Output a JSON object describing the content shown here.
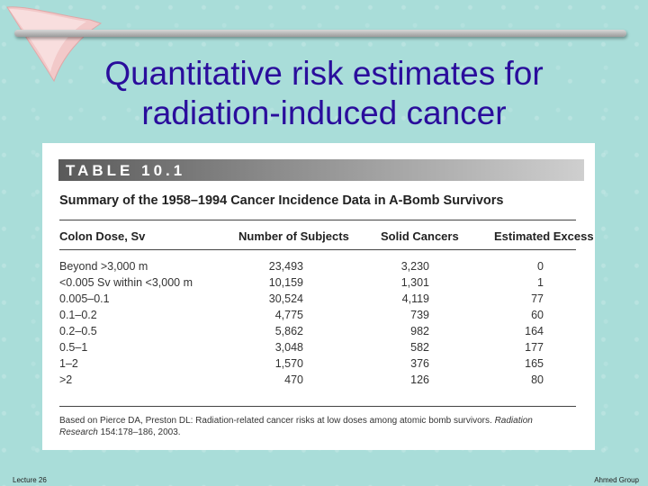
{
  "slide": {
    "title_line1": "Quantitative risk estimates for",
    "title_line2": "radiation-induced cancer",
    "footer_left": "Lecture 26",
    "footer_right": "Ahmed Group"
  },
  "table": {
    "label": "TABLE 10.1",
    "caption": "Summary of the 1958–1994 Cancer Incidence Data in A-Bomb Survivors",
    "columns": [
      "Colon Dose, Sv",
      "Number of Subjects",
      "Solid Cancers",
      "Estimated Excess"
    ],
    "rows": [
      [
        "Beyond >3,000 m",
        "23,493",
        "3,230",
        "0"
      ],
      [
        "<0.005 Sv within <3,000 m",
        "10,159",
        "1,301",
        "1"
      ],
      [
        "0.005–0.1",
        "30,524",
        "4,119",
        "77"
      ],
      [
        "0.1–0.2",
        "4,775",
        "739",
        "60"
      ],
      [
        "0.2–0.5",
        "5,862",
        "982",
        "164"
      ],
      [
        "0.5–1",
        "3,048",
        "582",
        "177"
      ],
      [
        "1–2",
        "1,570",
        "376",
        "165"
      ],
      [
        ">2",
        "470",
        "126",
        "80"
      ]
    ],
    "footnote_pre": "Based on Pierce DA, Preston DL: Radiation-related cancer risks at low doses among atomic bomb survivors. ",
    "footnote_journal": "Radiation Research",
    "footnote_post": " 154:178–186, 2003."
  }
}
